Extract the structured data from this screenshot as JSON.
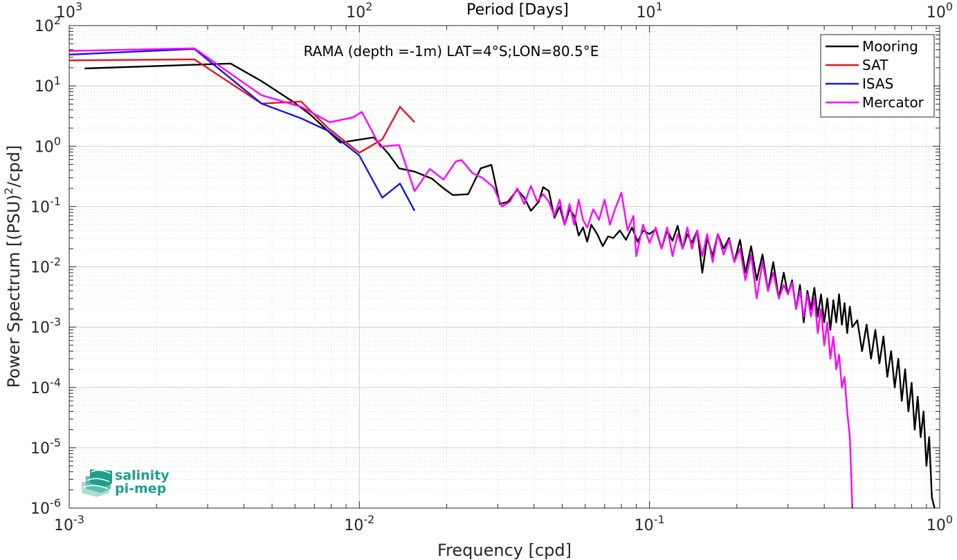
{
  "chart_data": {
    "type": "line",
    "title": "RAMA (depth =-1m) LAT=4°S;LON=80.5°E",
    "xlabel": "Frequency [cpd]",
    "ylabel": "Power Spectrum [(PSU)²/cpd]",
    "ylabel_parts": {
      "main": "Power Spectrum [(PSU)",
      "sup": "2",
      "tail": "/cpd]"
    },
    "top_xlabel": "Period [Days]",
    "x_scale": "log",
    "y_scale": "log",
    "xlim": [
      0.001,
      1
    ],
    "ylim": [
      1e-06,
      100
    ],
    "grid": true,
    "legend_position": "top-right",
    "x_ticks": [
      {
        "value": 0.001,
        "base": "10",
        "exp": "-3"
      },
      {
        "value": 0.01,
        "base": "10",
        "exp": "-2"
      },
      {
        "value": 0.1,
        "base": "10",
        "exp": "-1"
      },
      {
        "value": 1,
        "base": "10",
        "exp": "0"
      }
    ],
    "top_ticks": [
      {
        "value": 1000,
        "base": "10",
        "exp": "3"
      },
      {
        "value": 100,
        "base": "10",
        "exp": "2"
      },
      {
        "value": 10,
        "base": "10",
        "exp": "1"
      },
      {
        "value": 1,
        "base": "10",
        "exp": "0"
      }
    ],
    "y_ticks": [
      {
        "value": 100,
        "base": "10",
        "exp": "2"
      },
      {
        "value": 10,
        "base": "10",
        "exp": "1"
      },
      {
        "value": 1,
        "base": "10",
        "exp": "0"
      },
      {
        "value": 0.1,
        "base": "10",
        "exp": "-1"
      },
      {
        "value": 0.01,
        "base": "10",
        "exp": "-2"
      },
      {
        "value": 0.001,
        "base": "10",
        "exp": "-3"
      },
      {
        "value": 0.0001,
        "base": "10",
        "exp": "-4"
      },
      {
        "value": 1e-05,
        "base": "10",
        "exp": "-5"
      },
      {
        "value": 1e-06,
        "base": "10",
        "exp": "-6"
      }
    ],
    "series": [
      {
        "name": "Mooring",
        "color": "#000000",
        "points": [
          [
            0.00113,
            19.5
          ],
          [
            0.0036,
            23.5
          ],
          [
            0.0046,
            12
          ],
          [
            0.0059,
            5.5
          ],
          [
            0.0068,
            3.3
          ],
          [
            0.0086,
            1.15
          ],
          [
            0.0112,
            1.4
          ],
          [
            0.0126,
            0.75
          ],
          [
            0.0137,
            0.43
          ],
          [
            0.0155,
            0.38
          ],
          [
            0.0178,
            0.29
          ],
          [
            0.0195,
            0.2
          ],
          [
            0.021,
            0.155
          ],
          [
            0.0237,
            0.16
          ],
          [
            0.0262,
            0.43
          ],
          [
            0.0285,
            0.49
          ],
          [
            0.0305,
            0.11
          ],
          [
            0.0325,
            0.12
          ],
          [
            0.035,
            0.19
          ],
          [
            0.037,
            0.14
          ],
          [
            0.039,
            0.085
          ],
          [
            0.0415,
            0.12
          ],
          [
            0.043,
            0.21
          ],
          [
            0.045,
            0.18
          ],
          [
            0.047,
            0.065
          ],
          [
            0.049,
            0.1
          ],
          [
            0.051,
            0.05
          ],
          [
            0.053,
            0.09
          ],
          [
            0.055,
            0.07
          ],
          [
            0.057,
            0.033
          ],
          [
            0.059,
            0.045
          ],
          [
            0.061,
            0.026
          ],
          [
            0.063,
            0.05
          ],
          [
            0.066,
            0.035
          ],
          [
            0.069,
            0.022
          ],
          [
            0.072,
            0.032
          ],
          [
            0.075,
            0.03
          ],
          [
            0.079,
            0.04
          ],
          [
            0.083,
            0.028
          ],
          [
            0.087,
            0.045
          ],
          [
            0.091,
            0.026
          ],
          [
            0.095,
            0.04
          ],
          [
            0.1,
            0.035
          ],
          [
            0.105,
            0.042
          ],
          [
            0.11,
            0.02
          ],
          [
            0.115,
            0.04
          ],
          [
            0.12,
            0.027
          ],
          [
            0.125,
            0.048
          ],
          [
            0.13,
            0.02
          ],
          [
            0.135,
            0.035
          ],
          [
            0.14,
            0.025
          ],
          [
            0.146,
            0.04
          ],
          [
            0.152,
            0.008
          ],
          [
            0.158,
            0.03
          ],
          [
            0.165,
            0.015
          ],
          [
            0.172,
            0.035
          ],
          [
            0.18,
            0.02
          ],
          [
            0.188,
            0.03
          ],
          [
            0.196,
            0.012
          ],
          [
            0.205,
            0.028
          ],
          [
            0.214,
            0.008
          ],
          [
            0.224,
            0.022
          ],
          [
            0.234,
            0.006
          ],
          [
            0.245,
            0.016
          ],
          [
            0.256,
            0.004
          ],
          [
            0.267,
            0.012
          ],
          [
            0.279,
            0.003
          ],
          [
            0.29,
            0.008
          ],
          [
            0.3,
            0.0035
          ],
          [
            0.31,
            0.006
          ],
          [
            0.32,
            0.002
          ],
          [
            0.33,
            0.005
          ],
          [
            0.34,
            0.0012
          ],
          [
            0.35,
            0.004
          ],
          [
            0.36,
            0.002
          ],
          [
            0.37,
            0.0045
          ],
          [
            0.38,
            0.0015
          ],
          [
            0.39,
            0.0035
          ],
          [
            0.4,
            0.0012
          ],
          [
            0.41,
            0.003
          ],
          [
            0.42,
            0.0009
          ],
          [
            0.43,
            0.0028
          ],
          [
            0.44,
            0.0012
          ],
          [
            0.45,
            0.0035
          ],
          [
            0.46,
            0.0011
          ],
          [
            0.47,
            0.0025
          ],
          [
            0.48,
            0.0008
          ],
          [
            0.49,
            0.0022
          ],
          [
            0.5,
            0.001
          ],
          [
            0.52,
            0.0013
          ],
          [
            0.54,
            0.0004
          ],
          [
            0.56,
            0.0011
          ],
          [
            0.58,
            0.0003
          ],
          [
            0.6,
            0.0009
          ],
          [
            0.62,
            0.00025
          ],
          [
            0.64,
            0.0007
          ],
          [
            0.66,
            0.00015
          ],
          [
            0.68,
            0.0004
          ],
          [
            0.7,
            0.0001
          ],
          [
            0.72,
            0.0003
          ],
          [
            0.74,
            6e-05
          ],
          [
            0.76,
            0.0002
          ],
          [
            0.78,
            4e-05
          ],
          [
            0.8,
            0.00012
          ],
          [
            0.82,
            2e-05
          ],
          [
            0.84,
            7e-05
          ],
          [
            0.86,
            1.5e-05
          ],
          [
            0.88,
            4e-05
          ],
          [
            0.9,
            5e-06
          ],
          [
            0.92,
            1.5e-05
          ],
          [
            0.94,
            1.5e-06
          ],
          [
            0.96,
            1e-06
          ]
        ]
      },
      {
        "name": "SAT",
        "color": "#e6141e",
        "points": [
          [
            0.001,
            26.5
          ],
          [
            0.0027,
            27.5
          ],
          [
            0.0046,
            5.1
          ],
          [
            0.0063,
            5.5
          ],
          [
            0.0078,
            2.0
          ],
          [
            0.01,
            0.78
          ],
          [
            0.012,
            1.3
          ],
          [
            0.0138,
            4.5
          ],
          [
            0.0155,
            2.5
          ]
        ]
      },
      {
        "name": "ISAS",
        "color": "#1414e6",
        "points": [
          [
            0.001,
            33
          ],
          [
            0.0027,
            41
          ],
          [
            0.0046,
            5.1
          ],
          [
            0.0063,
            2.9
          ],
          [
            0.0078,
            1.8
          ],
          [
            0.01,
            0.7
          ],
          [
            0.012,
            0.14
          ],
          [
            0.0138,
            0.24
          ],
          [
            0.0155,
            0.085
          ]
        ]
      },
      {
        "name": "Mercator",
        "color": "#ff00ff",
        "points": [
          [
            0.001,
            38
          ],
          [
            0.0027,
            42
          ],
          [
            0.0046,
            7
          ],
          [
            0.0063,
            4.5
          ],
          [
            0.0079,
            2.5
          ],
          [
            0.0095,
            3.0
          ],
          [
            0.0102,
            3.7
          ],
          [
            0.0118,
            0.98
          ],
          [
            0.0137,
            1.05
          ],
          [
            0.0155,
            0.18
          ],
          [
            0.0175,
            0.42
          ],
          [
            0.0195,
            0.28
          ],
          [
            0.0215,
            0.56
          ],
          [
            0.0225,
            0.59
          ],
          [
            0.0245,
            0.36
          ],
          [
            0.0265,
            0.3
          ],
          [
            0.029,
            0.21
          ],
          [
            0.031,
            0.1
          ],
          [
            0.033,
            0.12
          ],
          [
            0.035,
            0.2
          ],
          [
            0.037,
            0.11
          ],
          [
            0.039,
            0.22
          ],
          [
            0.041,
            0.12
          ],
          [
            0.043,
            0.16
          ],
          [
            0.045,
            0.12
          ],
          [
            0.047,
            0.07
          ],
          [
            0.049,
            0.13
          ],
          [
            0.051,
            0.05
          ],
          [
            0.053,
            0.11
          ],
          [
            0.055,
            0.05
          ],
          [
            0.057,
            0.13
          ],
          [
            0.059,
            0.06
          ],
          [
            0.061,
            0.045
          ],
          [
            0.064,
            0.09
          ],
          [
            0.067,
            0.06
          ],
          [
            0.07,
            0.13
          ],
          [
            0.073,
            0.05
          ],
          [
            0.076,
            0.09
          ],
          [
            0.08,
            0.17
          ],
          [
            0.084,
            0.04
          ],
          [
            0.088,
            0.07
          ],
          [
            0.09,
            0.015
          ],
          [
            0.095,
            0.05
          ],
          [
            0.1,
            0.025
          ],
          [
            0.105,
            0.045
          ],
          [
            0.11,
            0.02
          ],
          [
            0.115,
            0.045
          ],
          [
            0.12,
            0.015
          ],
          [
            0.125,
            0.035
          ],
          [
            0.13,
            0.02
          ],
          [
            0.135,
            0.045
          ],
          [
            0.14,
            0.02
          ],
          [
            0.146,
            0.04
          ],
          [
            0.152,
            0.015
          ],
          [
            0.158,
            0.035
          ],
          [
            0.165,
            0.012
          ],
          [
            0.172,
            0.035
          ],
          [
            0.18,
            0.016
          ],
          [
            0.188,
            0.028
          ],
          [
            0.196,
            0.012
          ],
          [
            0.205,
            0.02
          ],
          [
            0.214,
            0.006
          ],
          [
            0.224,
            0.016
          ],
          [
            0.234,
            0.003
          ],
          [
            0.245,
            0.012
          ],
          [
            0.256,
            0.004
          ],
          [
            0.267,
            0.008
          ],
          [
            0.279,
            0.003
          ],
          [
            0.29,
            0.005
          ],
          [
            0.3,
            0.0035
          ],
          [
            0.31,
            0.0055
          ],
          [
            0.32,
            0.002
          ],
          [
            0.33,
            0.004
          ],
          [
            0.34,
            0.0015
          ],
          [
            0.35,
            0.0035
          ],
          [
            0.36,
            0.0015
          ],
          [
            0.37,
            0.003
          ],
          [
            0.38,
            0.0008
          ],
          [
            0.39,
            0.002
          ],
          [
            0.4,
            0.0005
          ],
          [
            0.41,
            0.0012
          ],
          [
            0.42,
            0.0003
          ],
          [
            0.43,
            0.0007
          ],
          [
            0.44,
            0.0002
          ],
          [
            0.45,
            0.00035
          ],
          [
            0.46,
            0.0001
          ],
          [
            0.47,
            0.00015
          ],
          [
            0.48,
            4e-05
          ],
          [
            0.49,
            1.5e-05
          ],
          [
            0.5,
            1e-06
          ]
        ]
      }
    ]
  },
  "logo": {
    "line1": "salinity",
    "line2": "pi-mep"
  }
}
